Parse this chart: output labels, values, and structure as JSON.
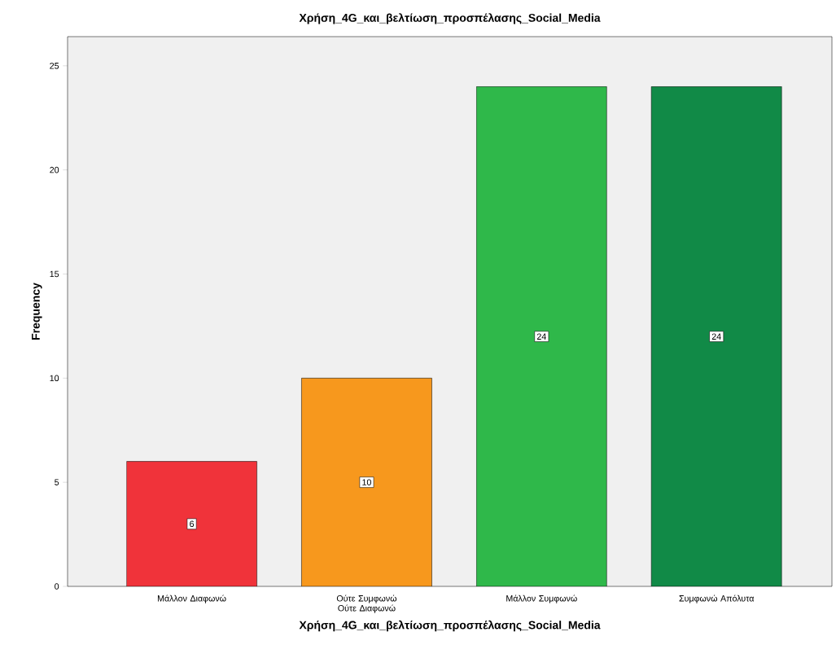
{
  "chart_data": {
    "type": "bar",
    "title": "Χρήση_4G_και_βελτίωση_προσπέλασης_Social_Media",
    "xlabel": "Χρήση_4G_και_βελτίωση_προσπέλασης_Social_Media",
    "ylabel": "Frequency",
    "categories": [
      "Μάλλον Διαφωνώ",
      "Ούτε Συμφωνώ Ούτε Διαφωνώ",
      "Μάλλον Συμφωνώ",
      "Συμφωνώ Απόλυτα"
    ],
    "values": [
      6,
      10,
      24,
      24
    ],
    "colors": [
      "#f0333a",
      "#f7981d",
      "#2fb84a",
      "#118a47"
    ],
    "ylim": [
      0,
      26.4
    ],
    "yticks": [
      0,
      5,
      10,
      15,
      20,
      25
    ],
    "data_labels": true
  }
}
